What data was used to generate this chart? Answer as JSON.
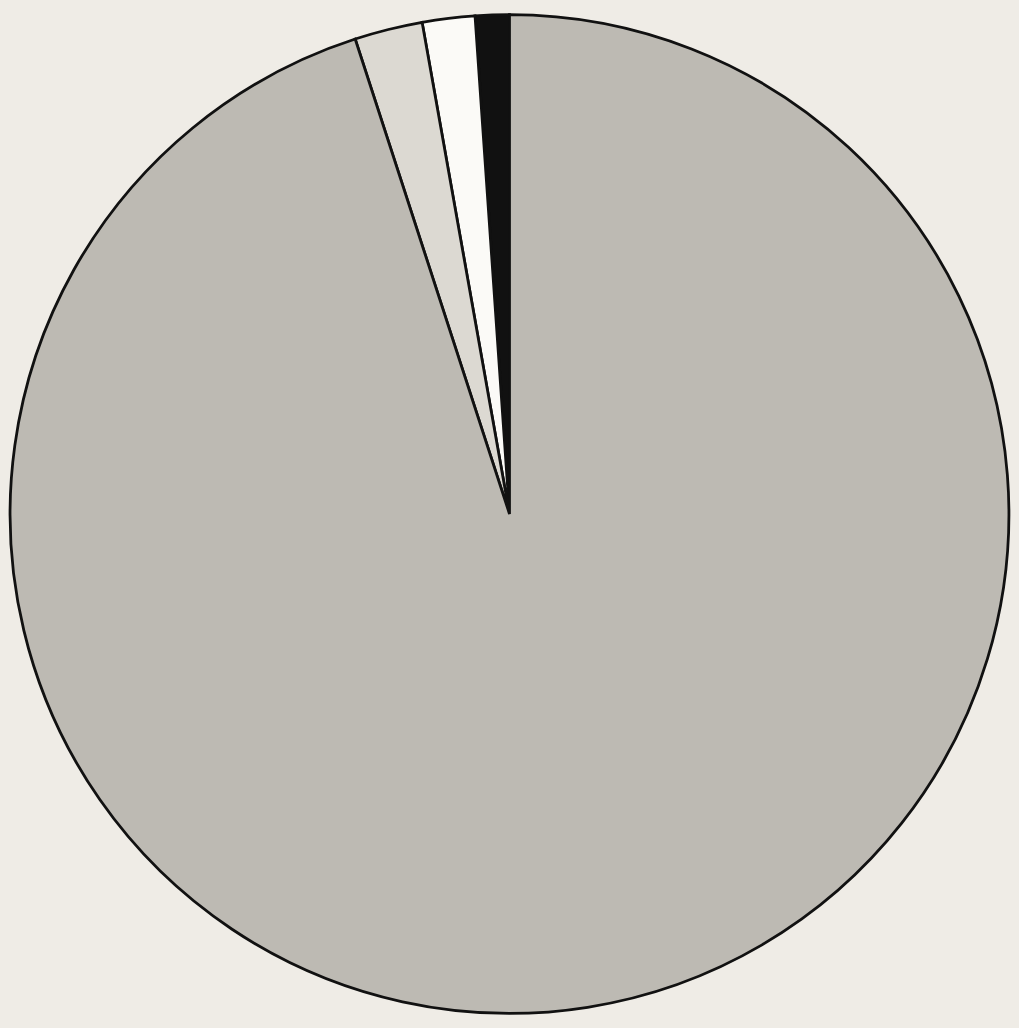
{
  "chart_data": {
    "type": "pie",
    "categories": [
      null,
      null,
      null,
      null
    ],
    "values": [
      1.1,
      1.7,
      2.2,
      95.0
    ],
    "colors": [
      "#111111",
      "#fbfaf7",
      "#dcd9d2",
      "#bdbab3"
    ]
  }
}
